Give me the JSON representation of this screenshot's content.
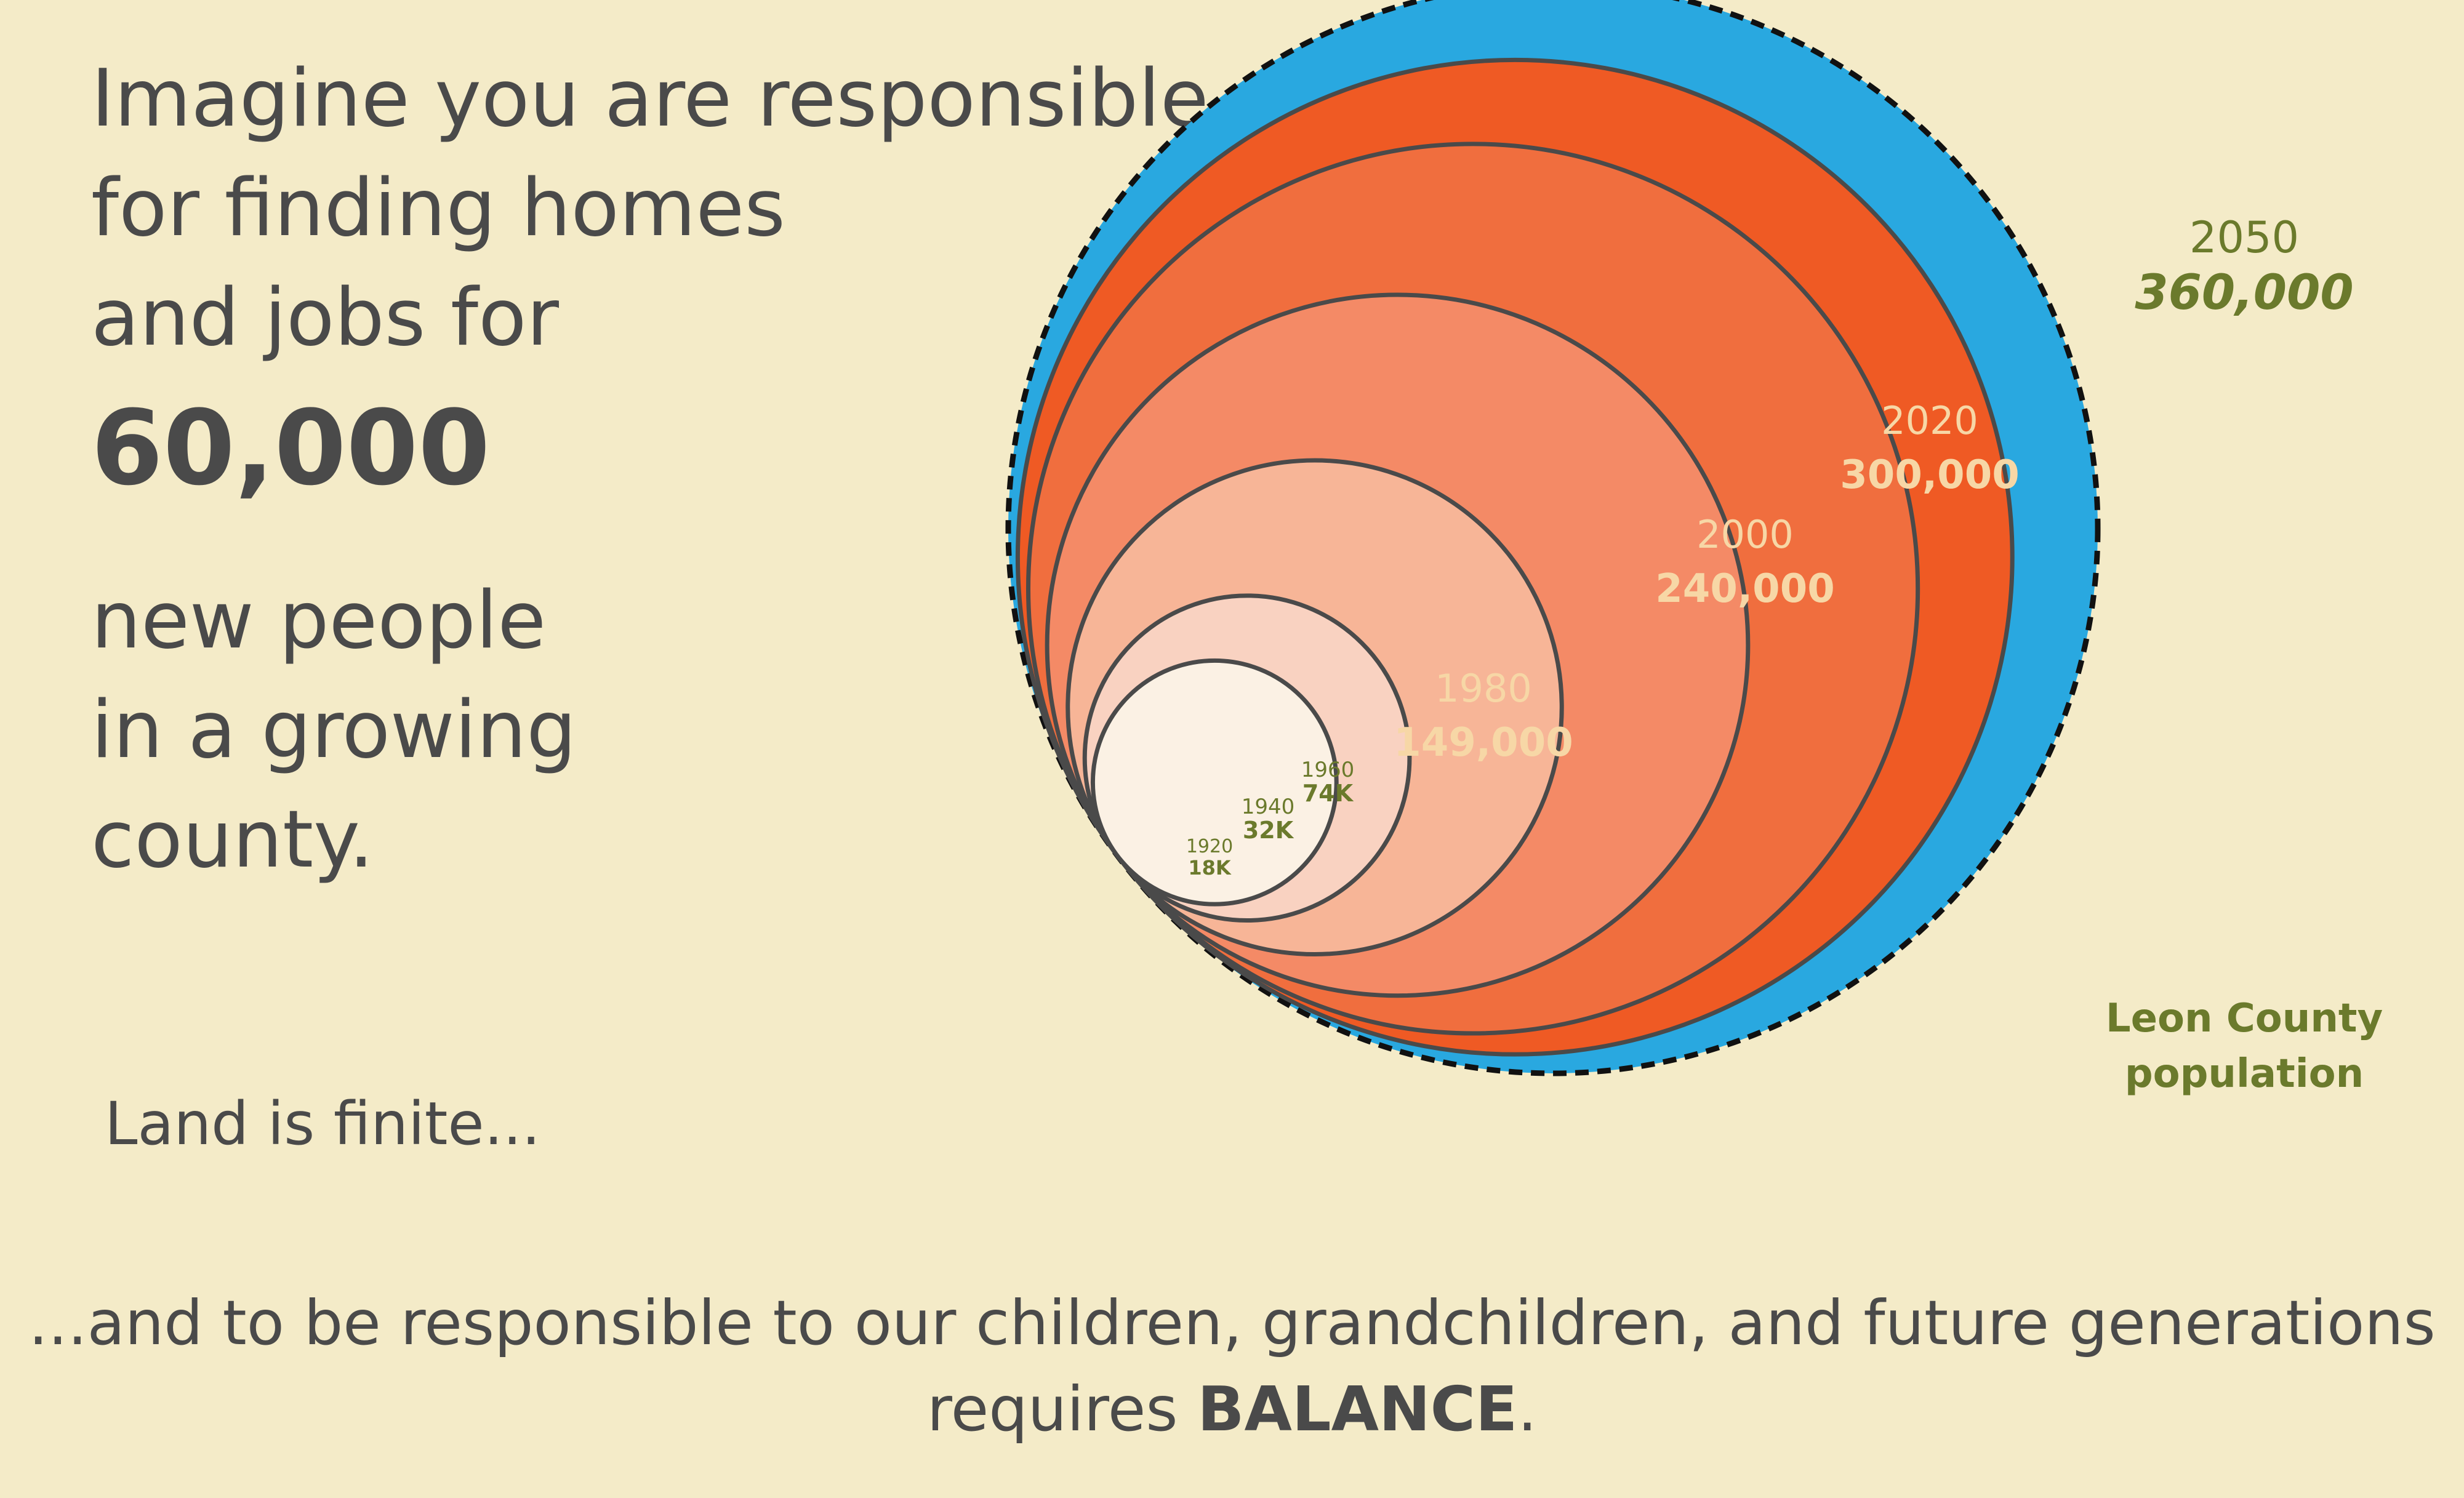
{
  "headline": {
    "line1": "Imagine you are responsible",
    "line2": "for finding homes",
    "line3": "and jobs for",
    "number": "60,000",
    "line4": "new people",
    "line5": "in a growing",
    "line6": "county."
  },
  "land_note": "Land is finite...",
  "footer": {
    "line1": "...and to be responsible to our children, grandchildren, and future generations",
    "line2_prefix": "requires ",
    "line2_emphasis": "BALANCE",
    "line2_suffix": "."
  },
  "chart_label": {
    "line1": "Leon County",
    "line2": "population"
  },
  "colors": {
    "background": "#f4ebc8",
    "projection_blue": "#29a8e0",
    "label_olive": "#6b7a2c",
    "label_cream": "#f7d7a6"
  },
  "chart_data": {
    "type": "nested-circles",
    "circles": [
      {
        "year": "2050",
        "label": "360,000",
        "value": 360000,
        "color": "#29a8e0",
        "projected": true
      },
      {
        "year": "2020",
        "label": "300,000",
        "value": 300000,
        "color": "#ef5a24"
      },
      {
        "year": "2000",
        "label": "240,000",
        "value": 240000,
        "color": "#f06e3e"
      },
      {
        "year": "1980",
        "label": "149,000",
        "value": 149000,
        "color": "#f48a66"
      },
      {
        "year": "1960",
        "label": "74K",
        "value": 74000,
        "color": "#f7b597"
      },
      {
        "year": "1940",
        "label": "32K",
        "value": 32000,
        "color": "#f9d2c1"
      },
      {
        "year": "1920",
        "label": "18K",
        "value": 18000,
        "color": "#fbf1e4"
      }
    ]
  }
}
